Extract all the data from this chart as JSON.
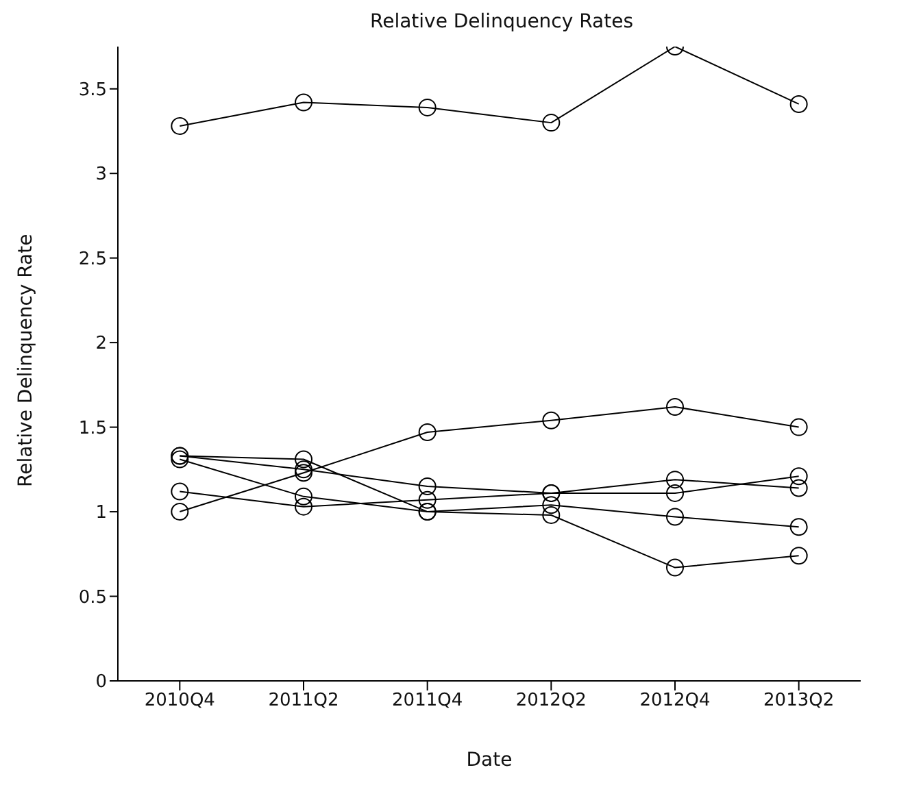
{
  "chart_data": {
    "type": "line",
    "title": "Relative Delinquency Rates",
    "xlabel": "Date",
    "ylabel": "Relative Delinquency Rate",
    "categories": [
      "2010Q4",
      "2011Q2",
      "2011Q4",
      "2012Q2",
      "2012Q4",
      "2013Q2"
    ],
    "ylim": [
      0,
      3.75
    ],
    "yticks": [
      0,
      0.5,
      1,
      1.5,
      2,
      2.5,
      3,
      3.5
    ],
    "grid": false,
    "legend": false,
    "marker": "circle",
    "line_style": "solid",
    "series": [
      {
        "color": "#000000",
        "values": [
          3.28,
          3.42,
          3.39,
          3.3,
          3.75,
          3.41
        ]
      },
      {
        "color": "#000000",
        "values": [
          1.33,
          1.31,
          1.0,
          0.98,
          0.67,
          0.74
        ]
      },
      {
        "color": "#000000",
        "values": [
          1.31,
          1.09,
          1.0,
          1.04,
          0.97,
          0.91
        ]
      },
      {
        "color": "#000000",
        "values": [
          1.12,
          1.03,
          1.07,
          1.11,
          1.11,
          1.21
        ]
      },
      {
        "color": "#000000",
        "values": [
          1.0,
          1.23,
          1.47,
          1.54,
          1.62,
          1.5
        ]
      },
      {
        "color": "#000000",
        "values": [
          1.33,
          1.25,
          1.15,
          1.11,
          1.19,
          1.14
        ]
      }
    ]
  }
}
